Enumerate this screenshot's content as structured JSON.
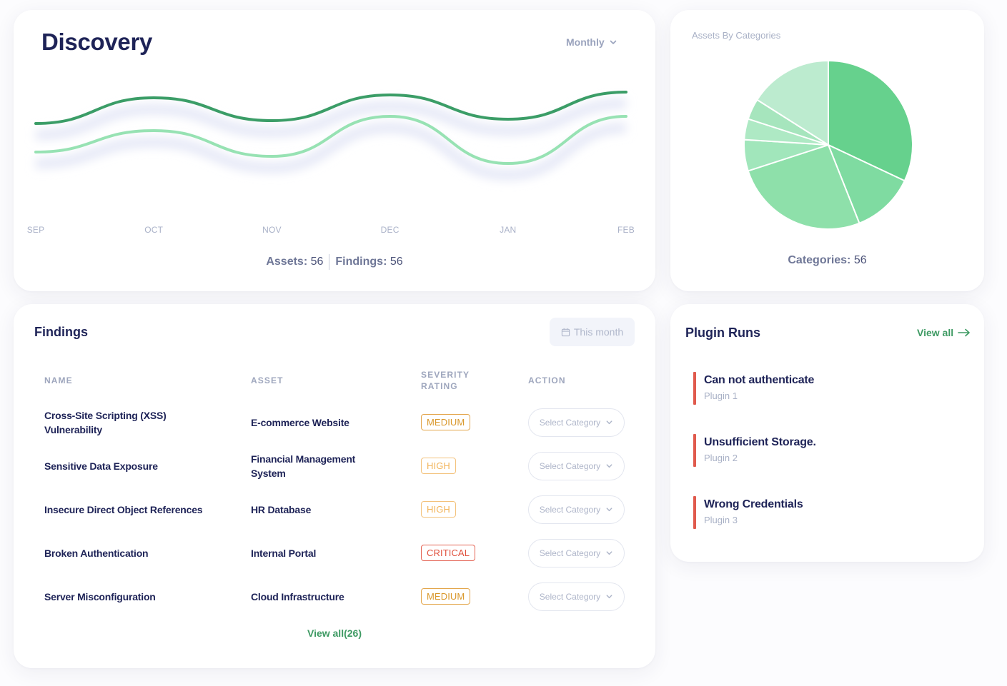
{
  "discovery": {
    "title": "Discovery",
    "period_label": "Monthly",
    "months": [
      "SEP",
      "OCT",
      "NOV",
      "DEC",
      "JAN",
      "FEB"
    ],
    "assets_label": "Assets:",
    "assets_value": "56",
    "findings_label": "Findings:",
    "findings_value": "56",
    "colors": {
      "series_dark": "#3b9d67",
      "series_light": "#97e2b3"
    },
    "chart_data": {
      "type": "line",
      "title": "Discovery",
      "x": [
        "SEP",
        "OCT",
        "NOV",
        "DEC",
        "JAN",
        "FEB"
      ],
      "ylim": [
        0,
        100
      ],
      "series": [
        {
          "name": "Assets",
          "values": [
            68,
            86,
            70,
            88,
            71,
            90
          ]
        },
        {
          "name": "Findings",
          "values": [
            48,
            63,
            45,
            73,
            40,
            73
          ]
        }
      ]
    }
  },
  "categories": {
    "title": "Assets By Categories",
    "total_label": "Categories:",
    "total_value": "56",
    "chart_data": {
      "type": "pie",
      "title": "Assets By Categories",
      "values": [
        32,
        12,
        26,
        6,
        4,
        4,
        16
      ],
      "colors": [
        "#66d18d",
        "#7fdba1",
        "#8ee0aa",
        "#a1e6bb",
        "#aee9c4",
        "#a6e5bd",
        "#bcebcf"
      ]
    }
  },
  "findings": {
    "title": "Findings",
    "filter_label": "This month",
    "columns": [
      "Name",
      "Asset",
      "Severity Rating",
      "Action"
    ],
    "rows": [
      {
        "name": "Cross-Site Scripting (XSS) Vulnerability",
        "asset": "E-commerce Website",
        "severity": "MEDIUM",
        "action": "Select Category"
      },
      {
        "name": "Sensitive Data Exposure",
        "asset": "Financial Management System",
        "severity": "HIGH",
        "action": "Select Category"
      },
      {
        "name": "Insecure Direct Object References",
        "asset": "HR Database",
        "severity": "HIGH",
        "action": "Select Category"
      },
      {
        "name": "Broken Authentication",
        "asset": "Internal Portal",
        "severity": "CRITICAL",
        "action": "Select Category"
      },
      {
        "name": "Server Misconfiguration",
        "asset": "Cloud Infrastructure",
        "severity": "MEDIUM",
        "action": "Select Category"
      }
    ],
    "view_all_label": "View all(26)"
  },
  "plugins": {
    "title": "Plugin Runs",
    "view_all_label": "View all",
    "items": [
      {
        "title": "Can not authenticate",
        "subtitle": "Plugin 1"
      },
      {
        "title": "Unsufficient Storage.",
        "subtitle": "Plugin 2"
      },
      {
        "title": "Wrong Credentials",
        "subtitle": "Plugin 3"
      }
    ],
    "accent_color": "#e05a4d"
  }
}
